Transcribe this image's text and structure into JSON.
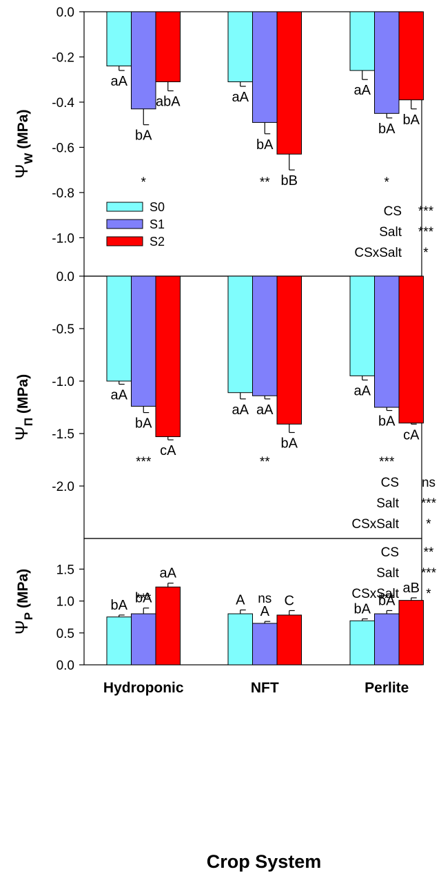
{
  "chart_data": {
    "type": "bar",
    "xlabel": "Crop System",
    "categories": [
      "Hydroponic",
      "NFT",
      "Perlite"
    ],
    "legend": {
      "placement": "left",
      "entries": [
        {
          "name": "S0",
          "color": "#7ffdfd"
        },
        {
          "name": "S1",
          "color": "#8080fb"
        },
        {
          "name": "S2",
          "color": "#ff0000"
        }
      ]
    },
    "panels": [
      {
        "id": "psi-w",
        "ylabel_symbol": "Ψ",
        "ylabel_sub": "W",
        "ylabel_unit": "(MPa)",
        "ylim": [
          -1.17,
          0.0
        ],
        "ticks": [
          "0.0",
          "-0.2",
          "-0.4",
          "-0.6",
          "-0.8",
          "-1.0"
        ],
        "series": [
          {
            "name": "S0",
            "values": [
              -0.24,
              -0.31,
              -0.26
            ],
            "errors": [
              0.02,
              0.02,
              0.04
            ],
            "labels": [
              "aA",
              "aA",
              "aA"
            ]
          },
          {
            "name": "S1",
            "values": [
              -0.43,
              -0.49,
              -0.45
            ],
            "errors": [
              0.07,
              0.05,
              0.02
            ],
            "labels": [
              "bA",
              "bA",
              "bA"
            ]
          },
          {
            "name": "S2",
            "values": [
              -0.31,
              -0.63,
              -0.39
            ],
            "errors": [
              0.04,
              0.07,
              0.04
            ],
            "labels": [
              "abA",
              "bB",
              "bA"
            ]
          }
        ],
        "significance": [
          "*",
          "**",
          "*"
        ],
        "stats": [
          [
            "CS",
            "***"
          ],
          [
            "Salt",
            "***"
          ],
          [
            "CSxSalt",
            "*"
          ]
        ]
      },
      {
        "id": "psi-pi",
        "ylabel_symbol": "Ψ",
        "ylabel_sub": "Π",
        "ylabel_unit": "(MPa)",
        "ylim": [
          -2.5,
          0.0
        ],
        "ticks": [
          "0.0",
          "-0.5",
          "-1.0",
          "-1.5",
          "-2.0"
        ],
        "series": [
          {
            "name": "S0",
            "values": [
              -1.0,
              -1.11,
              -0.95
            ],
            "errors": [
              0.03,
              0.06,
              0.04
            ],
            "labels": [
              "aA",
              "aA",
              "aA"
            ]
          },
          {
            "name": "S1",
            "values": [
              -1.24,
              -1.14,
              -1.25
            ],
            "errors": [
              0.06,
              0.03,
              0.03
            ],
            "labels": [
              "bA",
              "aA",
              "bA"
            ]
          },
          {
            "name": "S2",
            "values": [
              -1.53,
              -1.41,
              -1.4
            ],
            "errors": [
              0.03,
              0.08,
              0.01
            ],
            "labels": [
              "cA",
              "bA",
              "cA"
            ]
          }
        ],
        "significance": [
          "***",
          "**",
          "***"
        ],
        "stats": [
          [
            "CS",
            "ns"
          ],
          [
            "Salt",
            "***"
          ],
          [
            "CSxSalt",
            "*"
          ]
        ]
      },
      {
        "id": "psi-p",
        "ylabel_symbol": "Ψ",
        "ylabel_sub": "P",
        "ylabel_unit": "(MPa)",
        "ylim": [
          0.0,
          1.98
        ],
        "ticks": [
          "0.0",
          "0.5",
          "1.0",
          "1.5"
        ],
        "series": [
          {
            "name": "S0",
            "values": [
              0.75,
              0.8,
              0.69
            ],
            "errors": [
              0.03,
              0.06,
              0.03
            ],
            "labels": [
              "bA",
              "A",
              "bA"
            ]
          },
          {
            "name": "S1",
            "values": [
              0.8,
              0.65,
              0.8
            ],
            "errors": [
              0.09,
              0.03,
              0.05
            ],
            "labels": [
              "bA",
              "A",
              "bA"
            ]
          },
          {
            "name": "S2",
            "values": [
              1.22,
              0.78,
              1.01
            ],
            "errors": [
              0.06,
              0.07,
              0.04
            ],
            "labels": [
              "aA",
              "C",
              "aB"
            ]
          }
        ],
        "significance": [
          "***",
          "ns",
          "***"
        ],
        "stats": [
          [
            "CS",
            "**"
          ],
          [
            "Salt",
            "***"
          ],
          [
            "CSxSalt",
            "*"
          ]
        ]
      }
    ]
  }
}
